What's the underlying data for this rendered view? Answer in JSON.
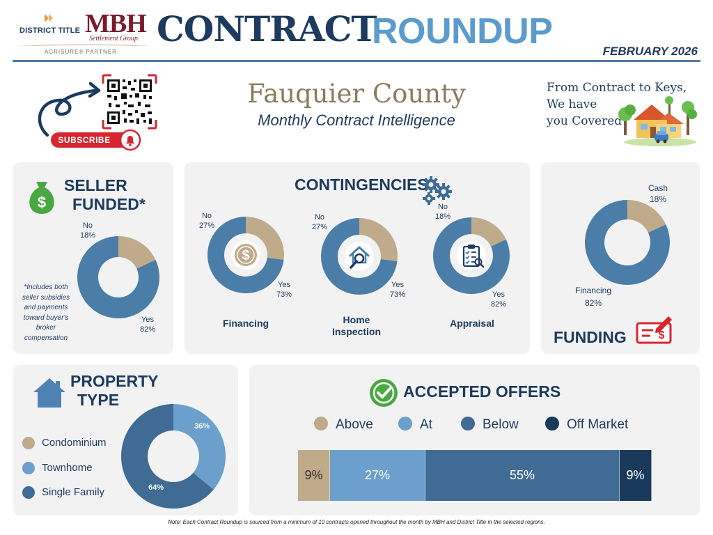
{
  "header": {
    "brand_left": "DISTRICT TITLE",
    "brand_mbh": "MBH",
    "brand_mbh_sub": "Settlement Group",
    "brand_partner": "ACRISURE® PARTNER",
    "title_part1": "CONTRACT",
    "title_part2": "ROUNDUP",
    "month": "FEBRUARY 2026"
  },
  "intro": {
    "subscribe": "SUBSCRIBE",
    "county": "Fauquier County",
    "subtitle": "Monthly Contract Intelligence",
    "tagline_lines": [
      "From Contract to Keys,",
      "We have",
      "you Covered"
    ]
  },
  "colors": {
    "tan": "#bfab89",
    "blue_mid": "#4a7ea9",
    "blue_light": "#6b9fcc",
    "blue_dark": "#3f6b94",
    "navy": "#1a3a5c",
    "panel": "#f2f2f2",
    "red": "#d7262f",
    "green": "#4aa843"
  },
  "seller": {
    "heading_line1": "SELLER",
    "heading_line2": "FUNDED*",
    "footnote_lines": [
      "*Includes both",
      "seller subsidies",
      "and payments",
      "toward buyer's",
      "broker",
      "compensation"
    ],
    "icon": "money-bag-icon"
  },
  "contingencies": {
    "heading": "CONTINGENCIES",
    "icon": "gears-icon"
  },
  "funding": {
    "heading": "FUNDING",
    "icon": "check-icon"
  },
  "property": {
    "heading_line1": "PROPERTY",
    "heading_line2": "TYPE",
    "icon": "house-icon"
  },
  "offers": {
    "heading": "ACCEPTED OFFERS",
    "icon": "checkmark-circle-icon"
  },
  "footer_note": "Note: Each Contract Roundup is sourced from a minimum of 10 contracts opened throughout the month by MBH and District Title in the selected regions.",
  "chart_data": [
    {
      "type": "pie",
      "id": "seller_funded",
      "title": "SELLER FUNDED*",
      "labels": [
        "No",
        "Yes"
      ],
      "values": [
        18,
        82
      ],
      "display": [
        "18%",
        "82%"
      ]
    },
    {
      "type": "pie",
      "id": "contingency_financing",
      "title": "Financing",
      "labels": [
        "No",
        "Yes"
      ],
      "values": [
        27,
        73
      ],
      "display": [
        "27%",
        "73%"
      ],
      "icon": "dollar-coin-icon"
    },
    {
      "type": "pie",
      "id": "contingency_home_inspection",
      "title_lines": [
        "Home",
        "Inspection"
      ],
      "labels": [
        "No",
        "Yes"
      ],
      "values": [
        27,
        73
      ],
      "display": [
        "27%",
        "73%"
      ],
      "icon": "house-magnifier-icon"
    },
    {
      "type": "pie",
      "id": "contingency_appraisal",
      "title": "Appraisal",
      "labels": [
        "No",
        "Yes"
      ],
      "values": [
        18,
        82
      ],
      "display": [
        "18%",
        "82%"
      ],
      "icon": "clipboard-checklist-icon"
    },
    {
      "type": "pie",
      "id": "funding",
      "title": "FUNDING",
      "labels": [
        "Cash",
        "Financing"
      ],
      "values": [
        18,
        82
      ],
      "display": [
        "18%",
        "82%"
      ]
    },
    {
      "type": "pie",
      "id": "property_type",
      "title": "PROPERTY TYPE",
      "labels": [
        "Condominium",
        "Townhome",
        "Single Family"
      ],
      "values": [
        0,
        36,
        64
      ],
      "display": [
        "",
        "36%",
        "64%"
      ],
      "colors": [
        "#bfab89",
        "#6b9fcc",
        "#3f6b94"
      ]
    },
    {
      "type": "bar",
      "id": "accepted_offers",
      "title": "ACCEPTED OFFERS",
      "orientation": "horizontal-stacked",
      "categories": [
        "Above",
        "At",
        "Below",
        "Off Market"
      ],
      "values": [
        9,
        27,
        55,
        9
      ],
      "display": [
        "9%",
        "27%",
        "55%",
        "9%"
      ],
      "colors": [
        "#bfab89",
        "#6b9fcc",
        "#3f6b94",
        "#1a3a5c"
      ]
    }
  ]
}
